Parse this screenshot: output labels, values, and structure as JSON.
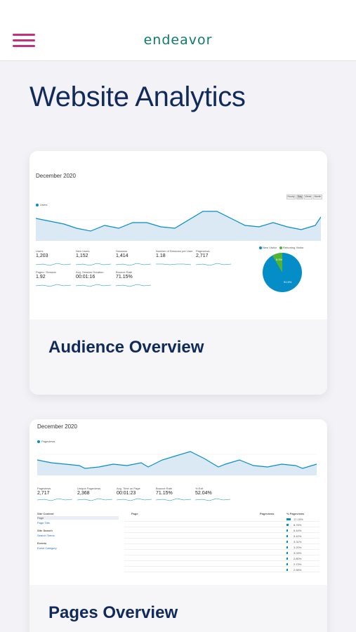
{
  "header": {
    "logo_text": "endeavor",
    "menu_icon": "hamburger-menu-icon",
    "accent": "#c2307e",
    "logo_color": "#0f7a6b"
  },
  "page": {
    "title": "Website Analytics"
  },
  "cards": [
    {
      "title": "Audience Overview",
      "screenshot": {
        "date_range": "December 2020",
        "series_label": "Users",
        "toggle": [
          "Hourly",
          "Day",
          "Week",
          "Month"
        ],
        "metrics": [
          {
            "label": "Users",
            "value": "1,203"
          },
          {
            "label": "New Users",
            "value": "1,152"
          },
          {
            "label": "Sessions",
            "value": "1,414"
          },
          {
            "label": "Number of Sessions per User",
            "value": "1.18"
          },
          {
            "label": "Pageviews",
            "value": "2,717"
          },
          {
            "label": "Pages / Session",
            "value": "1.92"
          },
          {
            "label": "Avg. Session Duration",
            "value": "00:01:16"
          },
          {
            "label": "Bounce Rate",
            "value": "71.15%"
          }
        ],
        "pie_legend": [
          "New Visitor",
          "Returning Visitor"
        ],
        "pie_values": [
          91.5,
          8.5
        ],
        "pie_labels": [
          "91.5%",
          "8.5%"
        ]
      }
    },
    {
      "title": "Pages Overview",
      "screenshot": {
        "date_range": "December 2020",
        "series_label": "Pageviews",
        "metrics": [
          {
            "label": "Pageviews",
            "value": "2,717"
          },
          {
            "label": "Unique Pageviews",
            "value": "2,368"
          },
          {
            "label": "Avg. Time on Page",
            "value": "00:01:23"
          },
          {
            "label": "Bounce Rate",
            "value": "71.15%"
          },
          {
            "label": "% Exit",
            "value": "52.04%"
          }
        ],
        "side_headers": [
          "Site Content",
          "Site Search",
          "Events"
        ],
        "side_items": [
          "Page",
          "Page Title",
          "Search Terms",
          "Event Category"
        ],
        "table_headers": [
          "Page",
          "Pageviews",
          "% Pageviews"
        ],
        "row_pcts": [
          "17.15%",
          "8.76%",
          "6.44%",
          "3.42%",
          "3.31%",
          "3.20%",
          "3.03%",
          "2.80%",
          "2.73%",
          "2.58%"
        ]
      }
    }
  ]
}
